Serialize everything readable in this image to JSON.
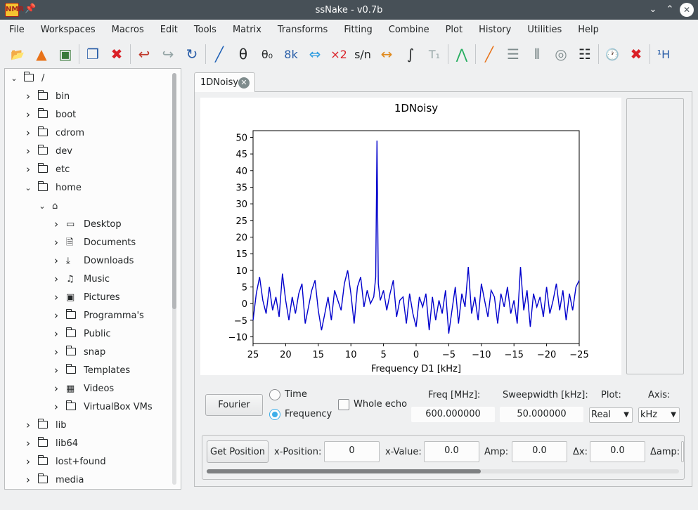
{
  "window": {
    "title": "ssNake - v0.7b",
    "app_icon_text": "NMR",
    "pin_glyph": "📌",
    "minimize_glyph": "⌄",
    "maximize_glyph": "⌃",
    "close_glyph": "✕"
  },
  "menu": [
    "File",
    "Workspaces",
    "Macros",
    "Edit",
    "Tools",
    "Matrix",
    "Transforms",
    "Fitting",
    "Combine",
    "Plot",
    "History",
    "Utilities",
    "Help"
  ],
  "toolbar": {
    "icons": [
      {
        "name": "open-folder-icon",
        "glyph": "📂",
        "color": "#e08a1e"
      },
      {
        "name": "matlab-icon",
        "glyph": "▲",
        "color": "#e8731a"
      },
      {
        "name": "image-export-icon",
        "glyph": "▣",
        "color": "#3a7a3a"
      },
      {
        "name": "duplicate-icon",
        "glyph": "❐",
        "color": "#2a5ea8"
      },
      {
        "name": "delete-icon",
        "glyph": "✖",
        "color": "#da2027"
      },
      {
        "name": "undo-icon",
        "glyph": "↩",
        "color": "#c0392b"
      },
      {
        "name": "redo-icon",
        "glyph": "↪",
        "color": "#95a5a6"
      },
      {
        "name": "reload-icon",
        "glyph": "↻",
        "color": "#2a5ea8"
      },
      {
        "name": "zero-order-phase-icon",
        "glyph": "╱",
        "color": "#1d5fb5"
      },
      {
        "name": "phase-icon",
        "glyph": "θ",
        "color": "#232627"
      },
      {
        "name": "phase-zero-icon",
        "glyph": "θ₀",
        "color": "#232627"
      },
      {
        "name": "size-icon",
        "glyph": "8k",
        "color": "#2a5ea8"
      },
      {
        "name": "shift-icon",
        "glyph": "⇔",
        "color": "#2f9de0"
      },
      {
        "name": "multiply-icon",
        "glyph": "×2",
        "color": "#da2027"
      },
      {
        "name": "snr-icon",
        "glyph": "s/n",
        "color": "#232627"
      },
      {
        "name": "width-icon",
        "glyph": "↔",
        "color": "#e08a1e"
      },
      {
        "name": "integrate-icon",
        "glyph": "∫",
        "color": "#232627"
      },
      {
        "name": "t1-icon",
        "glyph": "T₁",
        "color": "#95a5a6"
      },
      {
        "name": "peak-fit-icon",
        "glyph": "⋀",
        "color": "#27ae60"
      },
      {
        "name": "line-icon",
        "glyph": "╱",
        "color": "#e8731a"
      },
      {
        "name": "stack-icon",
        "glyph": "☰",
        "color": "#7f8c8d"
      },
      {
        "name": "array-icon",
        "glyph": "⦀",
        "color": "#7f8c8d"
      },
      {
        "name": "contour-icon",
        "glyph": "◎",
        "color": "#7f8c8d"
      },
      {
        "name": "list-icon",
        "glyph": "☷",
        "color": "#232627"
      },
      {
        "name": "history-icon",
        "glyph": "🕐",
        "color": "#232627"
      },
      {
        "name": "close-workspace-icon",
        "glyph": "✖",
        "color": "#da2027"
      },
      {
        "name": "nucleus-icon",
        "glyph": "¹H",
        "color": "#2a5ea8"
      }
    ]
  },
  "tree": {
    "items": [
      {
        "label": "/",
        "level": 0,
        "expanded": true,
        "icon": "folder"
      },
      {
        "label": "bin",
        "level": 1,
        "expanded": false,
        "icon": "folder"
      },
      {
        "label": "boot",
        "level": 1,
        "expanded": false,
        "icon": "folder"
      },
      {
        "label": "cdrom",
        "level": 1,
        "expanded": false,
        "icon": "folder"
      },
      {
        "label": "dev",
        "level": 1,
        "expanded": false,
        "icon": "folder"
      },
      {
        "label": "etc",
        "level": 1,
        "expanded": false,
        "icon": "folder"
      },
      {
        "label": "home",
        "level": 1,
        "expanded": true,
        "icon": "folder"
      },
      {
        "label": "",
        "level": 2,
        "expanded": true,
        "icon": "home"
      },
      {
        "label": "Desktop",
        "level": 3,
        "expanded": false,
        "icon": "desktop"
      },
      {
        "label": "Documents",
        "level": 3,
        "expanded": false,
        "icon": "documents"
      },
      {
        "label": "Downloads",
        "level": 3,
        "expanded": false,
        "icon": "downloads"
      },
      {
        "label": "Music",
        "level": 3,
        "expanded": false,
        "icon": "music"
      },
      {
        "label": "Pictures",
        "level": 3,
        "expanded": false,
        "icon": "pictures"
      },
      {
        "label": "Programma's",
        "level": 3,
        "expanded": false,
        "icon": "folder"
      },
      {
        "label": "Public",
        "level": 3,
        "expanded": false,
        "icon": "folder"
      },
      {
        "label": "snap",
        "level": 3,
        "expanded": false,
        "icon": "folder"
      },
      {
        "label": "Templates",
        "level": 3,
        "expanded": false,
        "icon": "folder"
      },
      {
        "label": "Videos",
        "level": 3,
        "expanded": false,
        "icon": "videos"
      },
      {
        "label": "VirtualBox VMs",
        "level": 3,
        "expanded": false,
        "icon": "folder"
      },
      {
        "label": "lib",
        "level": 1,
        "expanded": false,
        "icon": "folder"
      },
      {
        "label": "lib64",
        "level": 1,
        "expanded": false,
        "icon": "folder"
      },
      {
        "label": "lost+found",
        "level": 1,
        "expanded": false,
        "icon": "folder"
      },
      {
        "label": "media",
        "level": 1,
        "expanded": false,
        "icon": "folder"
      }
    ]
  },
  "tab": {
    "label": "1DNoisy",
    "close_glyph": "✕"
  },
  "chart_data": {
    "type": "line",
    "title": "1DNoisy",
    "xlabel": "Frequency D1 [kHz]",
    "ylabel": "",
    "xlim": [
      25,
      -25
    ],
    "ylim": [
      -12,
      52
    ],
    "x_ticks": [
      25,
      20,
      15,
      10,
      5,
      0,
      -5,
      -10,
      -15,
      -20,
      -25
    ],
    "y_ticks": [
      -10,
      -5,
      0,
      5,
      10,
      15,
      20,
      25,
      30,
      35,
      40,
      45,
      50
    ],
    "line_color": "#0000cc",
    "series": [
      {
        "x": [
          25.0,
          24.5,
          24.0,
          23.5,
          23.0,
          22.5,
          22.0,
          21.5,
          21.0,
          20.5,
          20.0,
          19.5,
          19.0,
          18.5,
          18.0,
          17.5,
          17.0,
          16.5,
          16.0,
          15.5,
          15.0,
          14.5,
          14.0,
          13.5,
          13.0,
          12.5,
          12.0,
          11.5,
          11.0,
          10.5,
          10.0,
          9.5,
          9.0,
          8.5,
          8.0,
          7.5,
          7.0,
          6.5,
          6.2,
          6.0,
          5.8,
          5.5,
          5.0,
          4.5,
          4.0,
          3.5,
          3.0,
          2.5,
          2.0,
          1.5,
          1.0,
          0.5,
          0.0,
          -0.5,
          -1.0,
          -1.5,
          -2.0,
          -2.5,
          -3.0,
          -3.5,
          -4.0,
          -4.5,
          -5.0,
          -5.5,
          -6.0,
          -6.5,
          -7.0,
          -7.5,
          -8.0,
          -8.5,
          -9.0,
          -9.5,
          -10.0,
          -10.5,
          -11.0,
          -11.5,
          -12.0,
          -12.5,
          -13.0,
          -13.5,
          -14.0,
          -14.5,
          -15.0,
          -15.5,
          -16.0,
          -16.5,
          -17.0,
          -17.5,
          -18.0,
          -18.5,
          -19.0,
          -19.5,
          -20.0,
          -20.5,
          -21.0,
          -21.5,
          -22.0,
          -22.5,
          -23.0,
          -23.5,
          -24.0,
          -24.5,
          -25.0
        ],
        "y": [
          -5,
          3,
          8,
          1,
          -3,
          5,
          -2,
          2,
          -4,
          9,
          1,
          -5,
          2,
          -3,
          3,
          6,
          -6,
          -1,
          4,
          7,
          -2,
          -8,
          -3,
          2,
          -5,
          4,
          1,
          -2,
          6,
          10,
          3,
          -6,
          5,
          8,
          -1,
          4,
          0,
          2,
          8,
          49,
          6,
          1,
          4,
          -2,
          3,
          7,
          -4,
          1,
          2,
          -6,
          3,
          -3,
          -7,
          2,
          -1,
          3,
          -8,
          2,
          -5,
          1,
          -3,
          4,
          -9,
          -2,
          5,
          -6,
          3,
          -1,
          11,
          -3,
          2,
          -5,
          6,
          1,
          -4,
          4,
          2,
          -6,
          3,
          -1,
          5,
          -3,
          1,
          -6,
          11,
          -2,
          4,
          -7,
          3,
          -1,
          2,
          -4,
          5,
          -3,
          1,
          6,
          -2,
          4,
          -5,
          3,
          -2,
          5,
          7
        ]
      }
    ]
  },
  "domain_controls": {
    "fourier_button": "Fourier",
    "time_label": "Time",
    "frequency_label": "Frequency",
    "time_checked": false,
    "frequency_checked": true,
    "whole_echo_label": "Whole echo",
    "whole_echo_checked": false,
    "freq_label": "Freq [MHz]:",
    "freq_value": "600.000000",
    "sweepwidth_label": "Sweepwidth [kHz]:",
    "sweepwidth_value": "50.000000",
    "plot_label": "Plot:",
    "plot_value": "Real",
    "axis_label": "Axis:",
    "axis_value": "kHz"
  },
  "position_controls": {
    "get_position_button": "Get Position",
    "x_position_label": "x-Position:",
    "x_position_value": "0",
    "x_value_label": "x-Value:",
    "x_value_value": "0.0",
    "amp_label": "Amp:",
    "amp_value": "0.0",
    "dx_label": "Δx:",
    "dx_value": "0.0",
    "damp_label": "Δamp:"
  }
}
